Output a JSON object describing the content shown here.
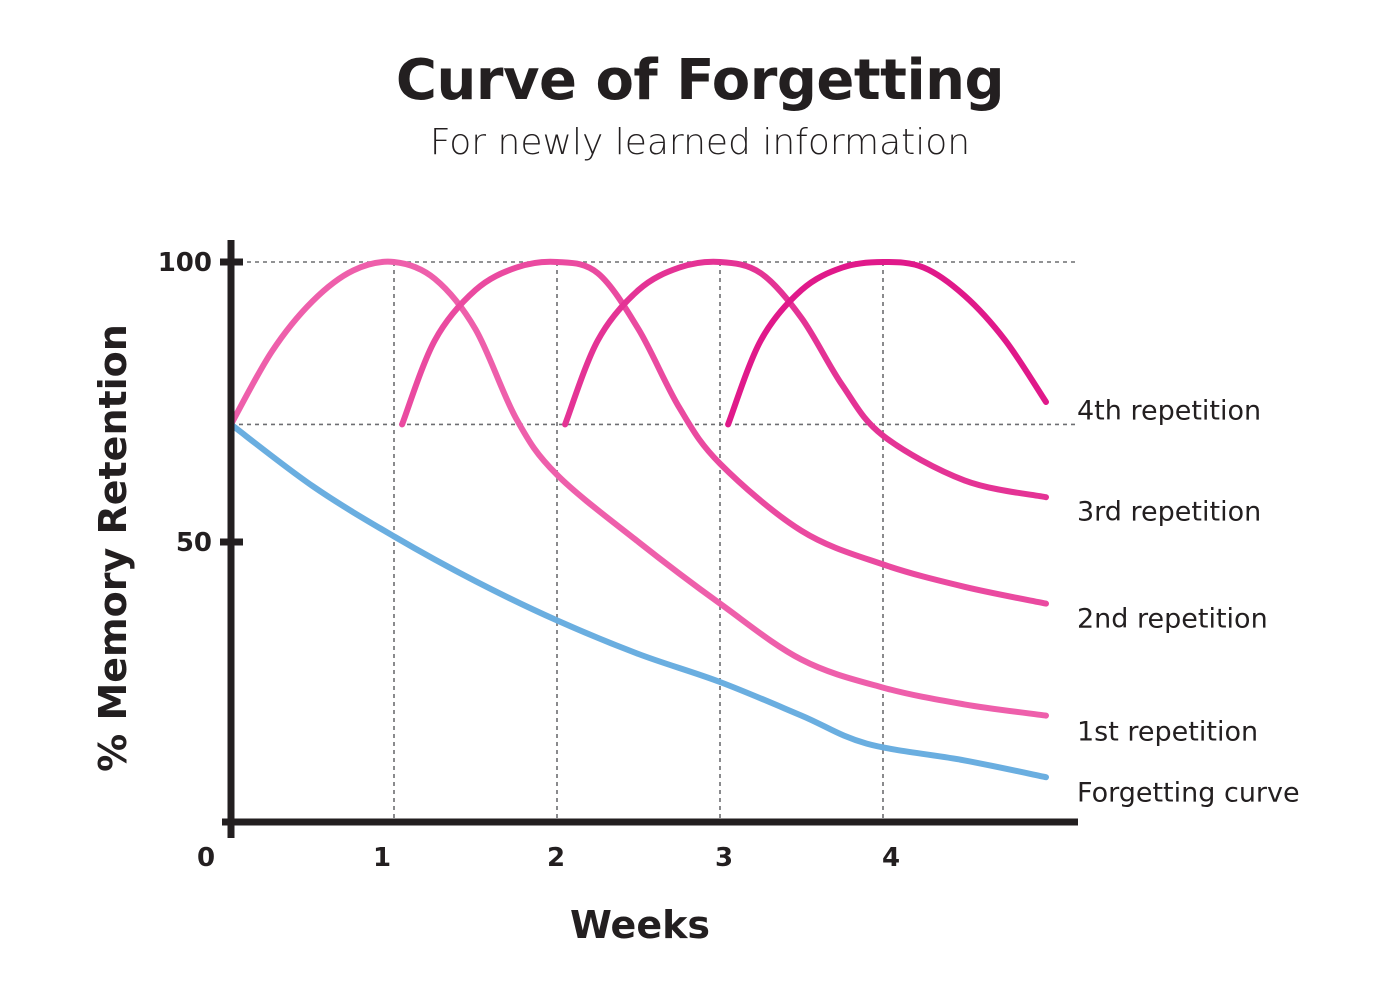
{
  "chart_data": {
    "type": "line",
    "title": "Curve of Forgetting",
    "subtitle": "For newly learned information",
    "xlabel": "Weeks",
    "ylabel": "% Memory Retention",
    "xlim": [
      0,
      5
    ],
    "ylim": [
      0,
      100
    ],
    "x_ticks": [
      "0",
      "1",
      "2",
      "3",
      "4"
    ],
    "y_ticks": [
      "100",
      "50"
    ],
    "grid": "dotted reference lines at 100 and 70 retention, and vertical dotted lines at weeks 1–4",
    "series": [
      {
        "name": "Forgetting curve",
        "color": "#6aaee0",
        "x": [
          0,
          0.5,
          1,
          1.5,
          2,
          2.5,
          3,
          3.5,
          3.9,
          4.5,
          5
        ],
        "y": [
          71,
          60,
          51,
          43,
          36,
          30,
          25,
          19,
          14,
          11,
          8
        ]
      },
      {
        "name": "1st repetition",
        "color": "#ee5fab",
        "x": [
          0,
          0.25,
          0.5,
          0.75,
          1,
          1.25,
          1.5,
          1.75,
          2,
          2.5,
          3,
          3.5,
          4,
          4.5,
          5
        ],
        "y": [
          71,
          84,
          93,
          98.5,
          100,
          97,
          88,
          72,
          62,
          50,
          39,
          29,
          24,
          21,
          19
        ]
      },
      {
        "name": "2nd repetition",
        "color": "#ea4aa0",
        "x": [
          1.05,
          1.25,
          1.5,
          1.75,
          2,
          2.25,
          2.5,
          2.75,
          3,
          3.5,
          4,
          4.5,
          5
        ],
        "y": [
          71,
          86,
          95,
          99,
          100,
          98,
          88,
          74,
          64,
          52,
          46,
          42,
          39
        ]
      },
      {
        "name": "3rd repetition",
        "color": "#e43395",
        "x": [
          2.05,
          2.25,
          2.5,
          2.75,
          3,
          3.25,
          3.5,
          3.75,
          4,
          4.5,
          5
        ],
        "y": [
          71,
          86,
          95,
          99,
          100,
          98,
          90,
          78,
          69,
          61,
          58
        ]
      },
      {
        "name": "4th repetition",
        "color": "#e0198a",
        "x": [
          3.05,
          3.25,
          3.5,
          3.75,
          4,
          4.25,
          4.5,
          4.75,
          5
        ],
        "y": [
          71,
          86,
          95,
          99,
          100,
          99,
          94,
          86,
          75
        ]
      }
    ]
  }
}
